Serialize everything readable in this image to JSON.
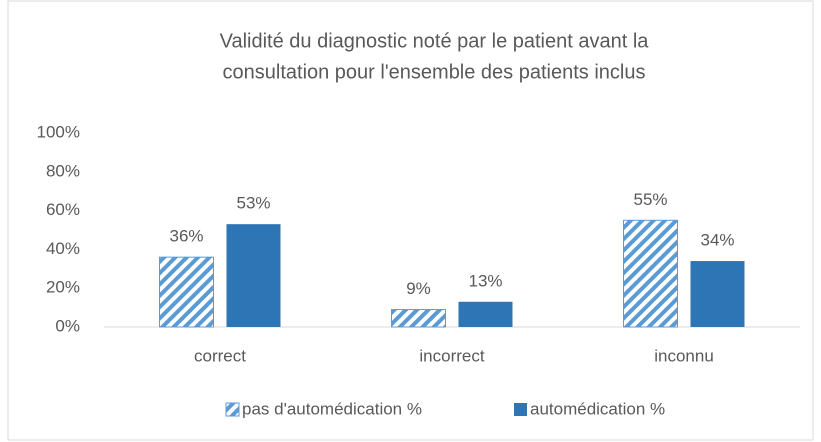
{
  "chart_data": {
    "type": "bar",
    "title": [
      "Validité du diagnostic noté par le patient avant la",
      "consultation pour l'ensemble des patients inclus"
    ],
    "categories": [
      "correct",
      "incorrect",
      "inconnu"
    ],
    "series": [
      {
        "name": "pas d'automédication %",
        "color": "#5b9bd5",
        "pattern": "hatch",
        "values": [
          36,
          9,
          55
        ],
        "value_labels": [
          "36%",
          "9%",
          "55%"
        ]
      },
      {
        "name": "automédication %",
        "color": "#2e75b6",
        "values": [
          53,
          13,
          34
        ],
        "value_labels": [
          "53%",
          "13%",
          "34%"
        ]
      }
    ],
    "ylim": [
      0,
      100
    ],
    "yticks": [
      {
        "value": 0,
        "label": "0%"
      },
      {
        "value": 20,
        "label": "20%"
      },
      {
        "value": 40,
        "label": "40%"
      },
      {
        "value": 60,
        "label": "60%"
      },
      {
        "value": 80,
        "label": "80%"
      },
      {
        "value": 100,
        "label": "100%"
      }
    ],
    "grid": false,
    "legend": "bottom"
  }
}
